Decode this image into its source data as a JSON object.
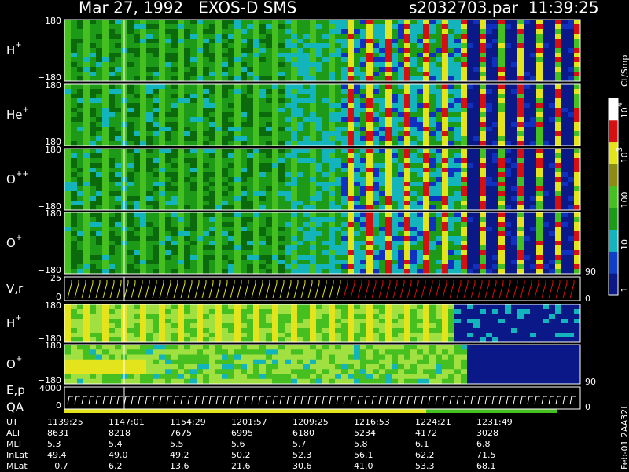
{
  "header": {
    "title": "Mar 27, 1992   EXOS-D SMS",
    "file": "s2032703.par  11:39:25"
  },
  "panels": [
    {
      "label": {
        "base": "H",
        "sup": "+"
      },
      "top": "180",
      "bottom": "−180"
    },
    {
      "label": {
        "base": "He",
        "sup": "+"
      },
      "top": "180",
      "bottom": "−180"
    },
    {
      "label": {
        "base": "O",
        "sup": "++"
      },
      "top": "180",
      "bottom": "−180"
    },
    {
      "label": {
        "base": "O",
        "sup": "+"
      },
      "top": "180",
      "bottom": "−180",
      "right": "90"
    },
    {
      "label": {
        "base": "V,r",
        "sup": ""
      },
      "top": "25",
      "bottom": "0",
      "right": "0"
    },
    {
      "label": {
        "base": "H",
        "sup": "+"
      },
      "top": "180",
      "bottom": "−180"
    },
    {
      "label": {
        "base": "O",
        "sup": "+"
      },
      "top": "180",
      "bottom": "−180",
      "right": "90"
    },
    {
      "label": {
        "base": "E,p",
        "sup": ""
      },
      "label2": "QA",
      "top": "4000",
      "bottom": "0",
      "right": "0"
    }
  ],
  "colorbar": {
    "title": "Ct/Smp",
    "labels": [
      {
        "base": "1",
        "sup": ""
      },
      {
        "base": "10",
        "sup": ""
      },
      {
        "base": "100",
        "sup": ""
      },
      {
        "base": "10",
        "sup": "3"
      },
      {
        "base": "10",
        "sup": "4"
      }
    ]
  },
  "footer": "Feb-01 2AA32L",
  "table": {
    "rows": [
      {
        "label": "UT",
        "values": [
          "1139:25",
          "1147:01",
          "1154:29",
          "1201:57",
          "1209:25",
          "1216:53",
          "1224:21",
          "1231:49"
        ]
      },
      {
        "label": "ALT",
        "values": [
          "8631",
          "8218",
          "7675",
          "6995",
          "6180",
          "5234",
          "4172",
          "3028"
        ]
      },
      {
        "label": "MLT",
        "values": [
          "5.3",
          "5.4",
          "5.5",
          "5.6",
          "5.7",
          "5.8",
          "6.1",
          "6.8"
        ]
      },
      {
        "label": "InLat",
        "values": [
          "49.4",
          "49.0",
          "49.2",
          "50.2",
          "52.3",
          "56.1",
          "62.2",
          "71.5"
        ]
      },
      {
        "label": "MLat",
        "values": [
          "−0.7",
          "6.2",
          "13.6",
          "21.6",
          "30.6",
          "41.0",
          "53.3",
          "68.1"
        ]
      }
    ]
  }
}
